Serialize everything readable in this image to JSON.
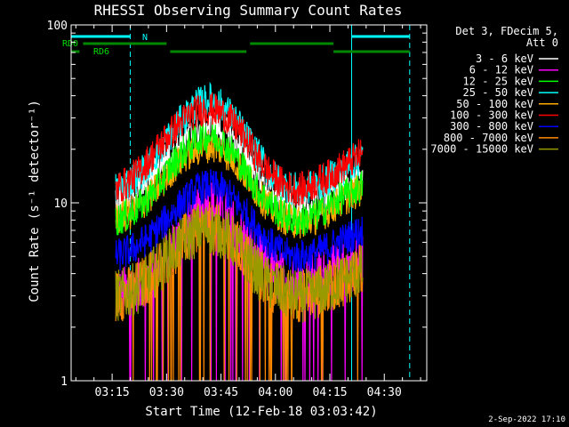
{
  "chart_data": {
    "type": "line",
    "title": "RHESSI Observing Summary Count Rates",
    "xlabel": "Start Time (12-Feb-18 03:03:42)",
    "ylabel": "Count Rate (s⁻¹ detector⁻¹)",
    "yscale": "log",
    "ylim": [
      1,
      100
    ],
    "xlim": [
      "03:03:42",
      "04:41:42"
    ],
    "x_ticks": [
      "03:15",
      "03:30",
      "03:45",
      "04:00",
      "04:15",
      "04:30"
    ],
    "y_ticks": [
      "1",
      "10",
      "100"
    ],
    "legend_header": [
      "Det 3, FDecim 5,",
      "Att 0"
    ],
    "legend_position": "top-right",
    "data_start": "03:16:00",
    "data_end": "04:24:00",
    "series": [
      {
        "name": "3 - 6 keV",
        "color": "#ffffff",
        "values": [
          10,
          11,
          12,
          14,
          17,
          20,
          23,
          26,
          27,
          26,
          23,
          19,
          15,
          12,
          10,
          9,
          9,
          10,
          11,
          12,
          13,
          14
        ]
      },
      {
        "name": "6 - 12 keV",
        "color": "#ff00ff",
        "values": [
          3,
          3.2,
          3.5,
          4,
          4.8,
          5.8,
          7,
          8.5,
          10,
          9,
          7.5,
          6,
          5,
          4.2,
          3.8,
          3.6,
          3.6,
          3.8,
          4,
          4.2,
          4.5,
          4.8
        ]
      },
      {
        "name": "12 - 25 keV",
        "color": "#00ff00",
        "values": [
          8,
          8.5,
          9.5,
          11,
          13.5,
          17,
          20,
          23,
          24,
          22.5,
          19,
          15,
          12,
          10,
          8.8,
          8,
          8,
          8.5,
          9.5,
          10.5,
          11.5,
          12.5
        ]
      },
      {
        "name": "25 - 50 keV",
        "color": "#00ffff",
        "values": [
          12,
          13,
          14.5,
          17,
          21,
          26,
          31,
          36,
          38,
          35,
          30,
          24,
          19,
          15,
          13,
          12,
          12,
          12.5,
          13.5,
          15,
          16.5,
          18
        ]
      },
      {
        "name": "50 - 100 keV",
        "color": "#ffaa00",
        "values": [
          8,
          8.5,
          9.5,
          11,
          13,
          16,
          18.5,
          20,
          21,
          20,
          17.5,
          14.5,
          11.5,
          9.5,
          8.5,
          7.8,
          7.8,
          8.2,
          9,
          10,
          11,
          12
        ]
      },
      {
        "name": "100 - 300 keV",
        "color": "#ff0000",
        "values": [
          12,
          13,
          15,
          18,
          22,
          26,
          30,
          33,
          34,
          32,
          28,
          23,
          18,
          15,
          13,
          12,
          12,
          13,
          14,
          15.5,
          17,
          19
        ]
      },
      {
        "name": "300 - 800 keV",
        "color": "#0000ff",
        "values": [
          5,
          5.3,
          5.8,
          6.5,
          7.6,
          9,
          10.5,
          12,
          12.5,
          12,
          10.5,
          8.8,
          7.2,
          6,
          5.3,
          5,
          5,
          5.2,
          5.6,
          6,
          6.5,
          7
        ]
      },
      {
        "name": "800 - 7000 keV",
        "color": "#ff8800",
        "values": [
          3,
          3.1,
          3.4,
          3.9,
          4.6,
          5.5,
          6.3,
          7,
          7.2,
          6.8,
          6,
          5,
          4.1,
          3.5,
          3.2,
          3,
          3,
          3.1,
          3.3,
          3.6,
          3.9,
          4.2
        ]
      },
      {
        "name": "7000 - 15000 keV",
        "color": "#999900",
        "values": [
          3,
          3.1,
          3.4,
          3.9,
          4.6,
          5.5,
          6.3,
          7,
          7.2,
          6.8,
          6,
          5,
          4.1,
          3.5,
          3.2,
          3,
          3,
          3.1,
          3.3,
          3.6,
          3.9,
          4.2
        ]
      }
    ],
    "flags": [
      {
        "label": "N",
        "color": "#00ffff",
        "segments": [
          [
            "03:03:42",
            "03:20:00"
          ],
          [
            "04:21:00",
            "04:37:00"
          ]
        ],
        "transitions": [
          "03:20:00",
          "04:21:00",
          "04:37:00"
        ]
      },
      {
        "label": "RD0",
        "color": "#008800",
        "segments": [
          [
            "03:07:00",
            "03:30:00"
          ],
          [
            "03:53:00",
            "04:16:00"
          ]
        ]
      },
      {
        "label": "RD6",
        "color": "#008800",
        "segments": [
          [
            "03:03:42",
            "03:06:00"
          ],
          [
            "03:31:00",
            "03:52:00"
          ],
          [
            "04:16:00",
            "04:37:00"
          ]
        ]
      }
    ]
  },
  "footer": {
    "timestamp": "2-Sep-2022 17:10"
  }
}
